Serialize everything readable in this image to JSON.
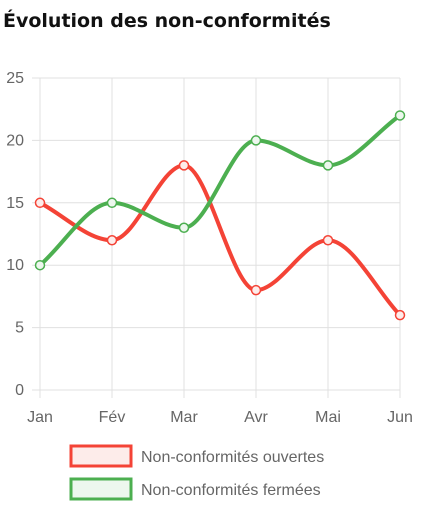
{
  "chart_data": {
    "type": "line",
    "title": "Évolution des non-conformités",
    "categories": [
      "Jan",
      "Fév",
      "Mar",
      "Avr",
      "Mai",
      "Jun"
    ],
    "ylim": [
      0,
      25
    ],
    "yticks": [
      0,
      5,
      10,
      15,
      20,
      25
    ],
    "grid": true,
    "legend_position": "bottom",
    "series": [
      {
        "name": "Non-conformités ouvertes",
        "values": [
          15,
          12,
          18,
          8,
          12,
          6
        ],
        "color": "#f44336",
        "fill": "#fdecea"
      },
      {
        "name": "Non-conformités fermées",
        "values": [
          10,
          15,
          13,
          20,
          18,
          22
        ],
        "color": "#4caf50",
        "fill": "#edf7ee"
      }
    ]
  }
}
